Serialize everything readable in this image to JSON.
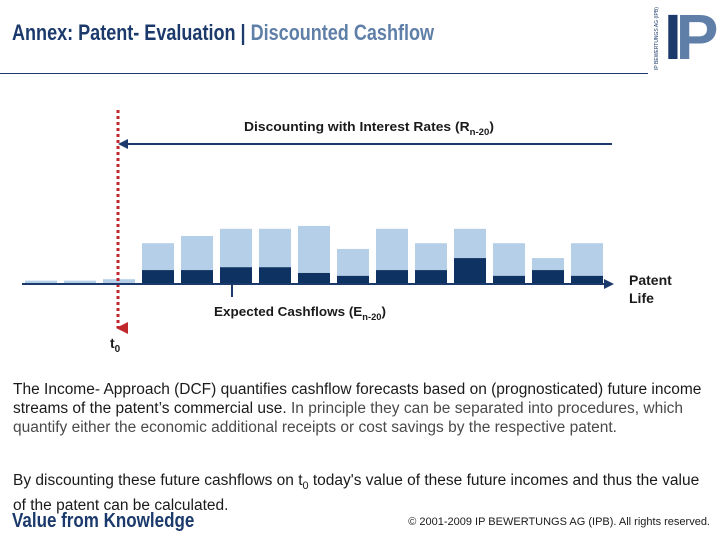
{
  "header": {
    "title_main": "Annex: Patent- Evaluation",
    "title_sep": " | ",
    "title_sub": "Discounted Cashflow"
  },
  "logo": {
    "vertical_text": "IP BEWERTUNGS AG (IPB)",
    "mark_i": "I",
    "mark_p": "P"
  },
  "diagram": {
    "discount_label": "Discounting with Interest Rates (R",
    "discount_sub": "n-20",
    "discount_close": ")",
    "cashflow_label": "Expected Cashflows (E",
    "cashflow_sub": "n-20",
    "cashflow_close": ")",
    "patent_life_line1": "Patent",
    "patent_life_line2": "Life",
    "t0_label": "t",
    "t0_sub": "0",
    "colors": {
      "light": "#b6cfe8",
      "dark": "#0e3262",
      "red": "#c0282d",
      "arrow": "#1b3a6b"
    },
    "bars": [
      {
        "total": 0.07,
        "dark": 0.0
      },
      {
        "total": 0.07,
        "dark": 0.0
      },
      {
        "total": 0.1,
        "dark": 0.0
      },
      {
        "total": 0.85,
        "dark": 0.29
      },
      {
        "total": 1.0,
        "dark": 0.29
      },
      {
        "total": 1.15,
        "dark": 0.35
      },
      {
        "total": 1.15,
        "dark": 0.35
      },
      {
        "total": 1.21,
        "dark": 0.23
      },
      {
        "total": 0.73,
        "dark": 0.17
      },
      {
        "total": 1.15,
        "dark": 0.29
      },
      {
        "total": 0.85,
        "dark": 0.29
      },
      {
        "total": 1.15,
        "dark": 0.54
      },
      {
        "total": 0.85,
        "dark": 0.17
      },
      {
        "total": 0.54,
        "dark": 0.29
      },
      {
        "total": 0.85,
        "dark": 0.17
      }
    ]
  },
  "body": {
    "p1_dark": "The Income- Approach (DCF) quantifies cashflow forecasts based on (prognosticated) future income streams of the patent’s commercial use. ",
    "p1_muted": "In principle they can be separated into procedures, which quantify either the economic additional receipts or cost savings by the respective patent.",
    "p2_a": "By discounting these future cashflows on t",
    "p2_sub": "0",
    "p2_b": " today's value of these future incomes and thus the value of the patent can be calculated."
  },
  "footer": {
    "slogan": "Value from Knowledge",
    "copyright": "© 2001-2009 IP BEWERTUNGS AG (IPB).  All rights reserved."
  }
}
